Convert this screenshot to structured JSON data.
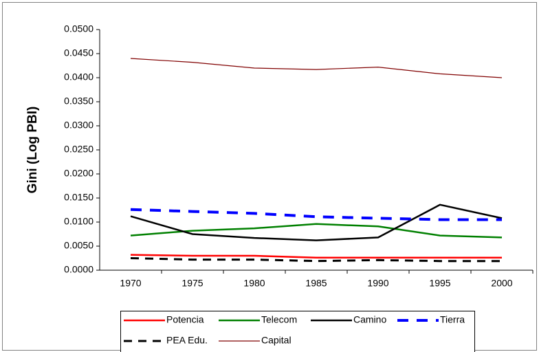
{
  "chart_data": {
    "type": "line",
    "ylabel": "Gini (Log PBI)",
    "categories": [
      "1970",
      "1975",
      "1980",
      "1985",
      "1990",
      "1995",
      "2000"
    ],
    "ylim": [
      0,
      0.05
    ],
    "yticks": [
      {
        "value": 0,
        "label": "0.0000"
      },
      {
        "value": 0.005,
        "label": "0.0050"
      },
      {
        "value": 0.01,
        "label": "0.0100"
      },
      {
        "value": 0.015,
        "label": "0.0150"
      },
      {
        "value": 0.02,
        "label": "0.0200"
      },
      {
        "value": 0.025,
        "label": "0.0250"
      },
      {
        "value": 0.03,
        "label": "0.0300"
      },
      {
        "value": 0.035,
        "label": "0.0350"
      },
      {
        "value": 0.04,
        "label": "0.0400"
      },
      {
        "value": 0.045,
        "label": "0.0450"
      },
      {
        "value": 0.05,
        "label": "0.0500"
      }
    ],
    "series": [
      {
        "name": "Potencia",
        "color": "#ff0000",
        "line_style": "solid",
        "linewidth": 2.5,
        "values": [
          0.0032,
          0.003,
          0.003,
          0.0026,
          0.0026,
          0.0026,
          0.0026
        ]
      },
      {
        "name": "Telecom",
        "color": "#008000",
        "line_style": "solid",
        "linewidth": 2.5,
        "values": [
          0.0072,
          0.0082,
          0.0087,
          0.0096,
          0.0091,
          0.0072,
          0.0068
        ]
      },
      {
        "name": "Camino",
        "color": "#000000",
        "line_style": "solid",
        "linewidth": 2.5,
        "values": [
          0.0112,
          0.0075,
          0.0067,
          0.0062,
          0.0068,
          0.0136,
          0.0108
        ]
      },
      {
        "name": "Tierra",
        "color": "#0000ff",
        "line_style": "dashed",
        "linewidth": 4,
        "values": [
          0.0126,
          0.0122,
          0.0118,
          0.0111,
          0.0108,
          0.0105,
          0.0105
        ]
      },
      {
        "name": "PEA Edu.",
        "color": "#000000",
        "line_style": "dashed",
        "linewidth": 3,
        "values": [
          0.0025,
          0.0022,
          0.0022,
          0.0019,
          0.0021,
          0.0019,
          0.0019
        ]
      },
      {
        "name": "Capital",
        "color": "#800000",
        "line_style": "solid",
        "linewidth": 1.2,
        "values": [
          0.044,
          0.0432,
          0.042,
          0.0417,
          0.0422,
          0.0408,
          0.04
        ]
      }
    ]
  }
}
